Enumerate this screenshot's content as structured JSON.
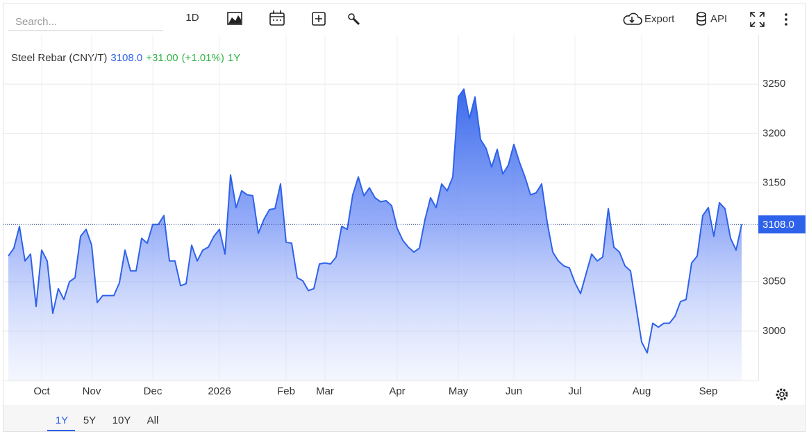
{
  "toolbar": {
    "search_placeholder": "Search...",
    "interval": "1D",
    "export": "Export",
    "api": "API"
  },
  "chart_data": {
    "type": "area",
    "title": "Steel Rebar (CNY/T)",
    "last_value": 3108,
    "last_value_label": "3108.0",
    "change": "+31.00",
    "change_percent": "(+1.01%)",
    "period": "1Y",
    "color": "#2f62ea",
    "categories": [
      null,
      null,
      null,
      null,
      null,
      null,
      "Oct",
      null,
      null,
      null,
      null,
      null,
      null,
      null,
      null,
      "Nov",
      null,
      null,
      null,
      null,
      null,
      null,
      null,
      null,
      null,
      null,
      "Dec",
      null,
      null,
      null,
      null,
      null,
      null,
      null,
      null,
      null,
      null,
      null,
      "2026",
      null,
      null,
      null,
      null,
      null,
      null,
      null,
      null,
      null,
      null,
      null,
      "Feb",
      null,
      null,
      null,
      null,
      null,
      null,
      "Mar",
      null,
      null,
      null,
      null,
      null,
      null,
      null,
      null,
      null,
      null,
      null,
      null,
      "Apr",
      null,
      null,
      null,
      null,
      null,
      null,
      null,
      null,
      null,
      null,
      "May",
      null,
      null,
      null,
      null,
      null,
      null,
      null,
      null,
      null,
      "Jun",
      null,
      null,
      null,
      null,
      null,
      null,
      null,
      null,
      null,
      null,
      "Jul",
      null,
      null,
      null,
      null,
      null,
      null,
      null,
      null,
      null,
      null,
      null,
      "Aug",
      null,
      null,
      null,
      null,
      null,
      null,
      null,
      null,
      null,
      null,
      null,
      "Sep",
      null,
      null,
      null,
      null,
      null,
      null
    ],
    "values": [
      3076,
      3084,
      3106,
      3071,
      3078,
      3025,
      3082,
      3071,
      3018,
      3043,
      3032,
      3050,
      3054,
      3096,
      3103,
      3087,
      3029,
      3036,
      3036,
      3036,
      3049,
      3082,
      3061,
      3061,
      3094,
      3089,
      3108,
      3108,
      3117,
      3071,
      3071,
      3046,
      3048,
      3087,
      3071,
      3082,
      3085,
      3096,
      3103,
      3078,
      3158,
      3125,
      3142,
      3138,
      3137,
      3099,
      3113,
      3123,
      3124,
      3149,
      3090,
      3089,
      3054,
      3051,
      3041,
      3043,
      3068,
      3069,
      3068,
      3075,
      3106,
      3103,
      3138,
      3156,
      3137,
      3145,
      3135,
      3131,
      3132,
      3127,
      3104,
      3092,
      3085,
      3080,
      3084,
      3113,
      3135,
      3125,
      3149,
      3142,
      3156,
      3237,
      3245,
      3215,
      3237,
      3194,
      3185,
      3166,
      3184,
      3159,
      3168,
      3189,
      3171,
      3156,
      3138,
      3140,
      3149,
      3110,
      3080,
      3071,
      3066,
      3064,
      3049,
      3038,
      3058,
      3078,
      3071,
      3075,
      3124,
      3085,
      3080,
      3066,
      3061,
      3025,
      2989,
      2978,
      3008,
      3004,
      3008,
      3008,
      3015,
      3030,
      3032,
      3069,
      3076,
      3117,
      3125,
      3096,
      3130,
      3124,
      3094,
      3082,
      3108
    ],
    "ylim": [
      2950,
      3300
    ],
    "yticks": [
      3000,
      3050,
      3150,
      3200,
      3250
    ],
    "grid": true
  },
  "range_tabs": [
    "1Y",
    "5Y",
    "10Y",
    "All"
  ]
}
